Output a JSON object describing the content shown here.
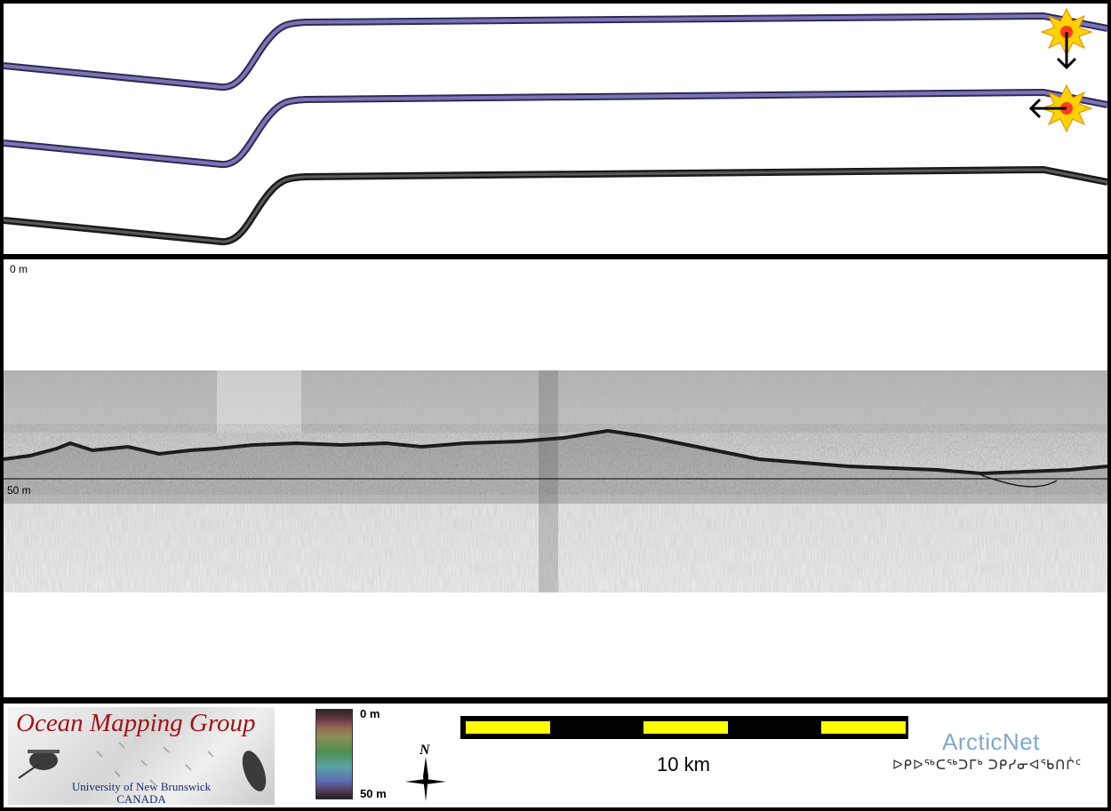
{
  "profile": {
    "top_depth_label": "0 m",
    "mid_depth_label": "50 m"
  },
  "legend": {
    "logo": {
      "title": "Ocean Mapping Group",
      "university": "University of New Brunswick",
      "country": "CANADA"
    },
    "colorbar": {
      "top_label": "0 m",
      "bottom_label": "50 m"
    },
    "north_arrow_label": "N",
    "scale_bar_label": "10 km",
    "arcticnet": {
      "name": "ArcticNet",
      "inuktitut": "ᐅᑭᐅᖅᑕᖅᑐᒥᒃ ᑐᑭᓯᓂᐊᖃᑎᒌᑦ"
    }
  },
  "colors": {
    "track_purple": "#6e6aa8",
    "track_gray": "#3a3a3a",
    "scale_yellow": "#ffff00",
    "logo_red": "#a0151c",
    "arcticnet_blue": "#7fa8d2"
  }
}
